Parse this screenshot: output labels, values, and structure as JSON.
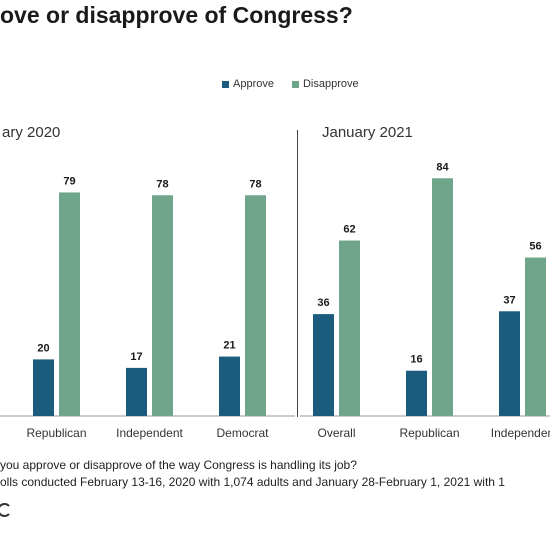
{
  "title": "ove or disapprove of Congress?",
  "colors": {
    "approve": "#1a5b7e",
    "disapprove": "#6fa58a",
    "axis": "#9a9a9a",
    "divider": "#444444"
  },
  "chart_data": {
    "type": "bar",
    "legend_position": "top-center",
    "legend": [
      {
        "label": "Approve",
        "color": "#1a5b7e"
      },
      {
        "label": "Disapprove",
        "color": "#6fa58a"
      }
    ],
    "ylim": [
      0,
      100
    ],
    "panels": [
      {
        "title": "ary 2020",
        "categories": [
          "Republican",
          "Independent",
          "Democrat"
        ],
        "series": [
          {
            "name": "Approve",
            "values": [
              20,
              17,
              21
            ]
          },
          {
            "name": "Disapprove",
            "values": [
              79,
              78,
              78
            ]
          }
        ]
      },
      {
        "title": "January 2021",
        "categories": [
          "Overall",
          "Republican",
          "Independen"
        ],
        "series": [
          {
            "name": "Approve",
            "values": [
              36,
              16,
              37
            ]
          },
          {
            "name": "Disapprove",
            "values": [
              62,
              84,
              56
            ]
          }
        ]
      }
    ]
  },
  "notes": [
    "you approve or disapprove of the way Congress is handling its job?",
    "olls conducted February 13-16, 2020 with 1,074 adults and January 28-February 1, 2021 with 1"
  ],
  "logo_icon": "brand-logo-icon"
}
